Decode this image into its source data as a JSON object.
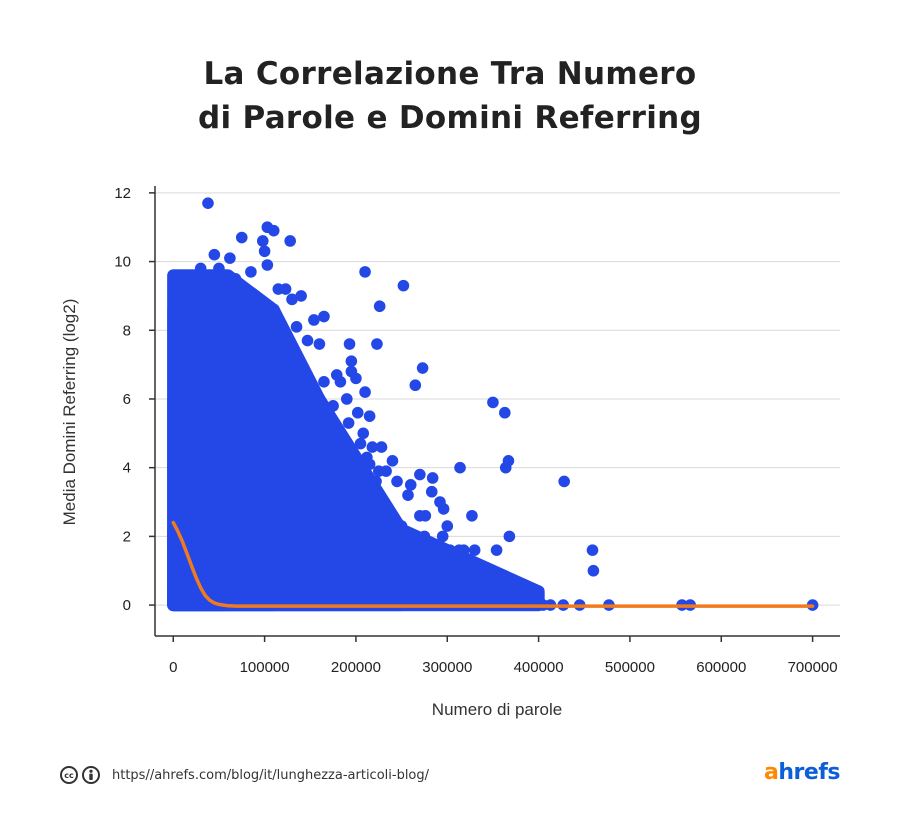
{
  "title_lines": [
    "La Correlazione Tra Numero",
    "di Parole e Domini Referring"
  ],
  "footer": {
    "license_icons": [
      "cc-icon",
      "attribution-icon"
    ],
    "url": "https//ahrefs.com/blog/it/lunghezza-articoli-blog/"
  },
  "brand": {
    "first": "a",
    "rest": "hrefs"
  },
  "colors": {
    "points": "#2448e8",
    "trend": "#f07a1e",
    "axis": "#333333",
    "grid": "#d9d9d9"
  },
  "chart_data": {
    "type": "scatter",
    "xlabel": "Numero di parole",
    "ylabel": "Media Domini Referring (log2)",
    "xlim": [
      -20000,
      730000
    ],
    "ylim": [
      -0.9,
      12.2
    ],
    "xticks": [
      0,
      100000,
      200000,
      300000,
      400000,
      500000,
      600000,
      700000
    ],
    "xtick_labels": [
      "0",
      "100000",
      "200000",
      "300000",
      "400000",
      "500000",
      "600000",
      "700000"
    ],
    "yticks": [
      0,
      2,
      4,
      6,
      8,
      10,
      12
    ],
    "ytick_labels": [
      "0",
      "2",
      "4",
      "6",
      "8",
      "10",
      "12"
    ],
    "grid": "horizontal",
    "dense_regions": [
      {
        "x": [
          0,
          110000
        ],
        "y": [
          0,
          8.6
        ]
      },
      {
        "x": [
          0,
          60000
        ],
        "y": [
          0,
          9.6
        ]
      },
      {
        "x": [
          0,
          160000
        ],
        "y": [
          0,
          6.0
        ]
      },
      {
        "x": [
          0,
          250000
        ],
        "y": [
          0,
          2.2
        ]
      },
      {
        "x": [
          0,
          400000
        ],
        "y": [
          0,
          0.4
        ]
      }
    ],
    "points": [
      [
        38000,
        11.7
      ],
      [
        103000,
        11.0
      ],
      [
        110000,
        10.9
      ],
      [
        128000,
        10.6
      ],
      [
        75000,
        10.7
      ],
      [
        98000,
        10.6
      ],
      [
        45000,
        10.2
      ],
      [
        100000,
        10.3
      ],
      [
        103000,
        9.9
      ],
      [
        30000,
        9.8
      ],
      [
        50000,
        9.8
      ],
      [
        62000,
        10.1
      ],
      [
        85000,
        9.7
      ],
      [
        68000,
        9.5
      ],
      [
        210000,
        9.7
      ],
      [
        252000,
        9.3
      ],
      [
        123000,
        9.2
      ],
      [
        115000,
        9.2
      ],
      [
        140000,
        9.0
      ],
      [
        130000,
        8.9
      ],
      [
        82000,
        8.9
      ],
      [
        226000,
        8.7
      ],
      [
        3000,
        8.6
      ],
      [
        20000,
        8.7
      ],
      [
        154000,
        8.3
      ],
      [
        165000,
        8.4
      ],
      [
        135000,
        8.1
      ],
      [
        147000,
        7.7
      ],
      [
        160000,
        7.6
      ],
      [
        193000,
        7.6
      ],
      [
        223000,
        7.6
      ],
      [
        195000,
        7.1
      ],
      [
        195000,
        6.8
      ],
      [
        179000,
        6.7
      ],
      [
        200000,
        6.6
      ],
      [
        165000,
        6.5
      ],
      [
        183000,
        6.5
      ],
      [
        273000,
        6.9
      ],
      [
        265000,
        6.4
      ],
      [
        350000,
        5.9
      ],
      [
        363000,
        5.6
      ],
      [
        190000,
        6.0
      ],
      [
        210000,
        6.2
      ],
      [
        175000,
        5.8
      ],
      [
        202000,
        5.6
      ],
      [
        192000,
        5.3
      ],
      [
        215000,
        5.5
      ],
      [
        208000,
        5.0
      ],
      [
        186000,
        4.9
      ],
      [
        205000,
        4.7
      ],
      [
        218000,
        4.6
      ],
      [
        228000,
        4.6
      ],
      [
        212000,
        4.3
      ],
      [
        240000,
        4.2
      ],
      [
        233000,
        3.9
      ],
      [
        225000,
        3.9
      ],
      [
        215000,
        4.1
      ],
      [
        222000,
        3.6
      ],
      [
        245000,
        3.6
      ],
      [
        270000,
        3.8
      ],
      [
        260000,
        3.5
      ],
      [
        284000,
        3.7
      ],
      [
        257000,
        3.2
      ],
      [
        283000,
        3.3
      ],
      [
        292000,
        3.0
      ],
      [
        296000,
        2.8
      ],
      [
        314000,
        4.0
      ],
      [
        364000,
        4.0
      ],
      [
        367000,
        4.2
      ],
      [
        428000,
        3.6
      ],
      [
        327000,
        2.6
      ],
      [
        270000,
        2.6
      ],
      [
        276000,
        2.6
      ],
      [
        300000,
        2.3
      ],
      [
        250000,
        2.3
      ],
      [
        233000,
        2.3
      ],
      [
        240000,
        2.0
      ],
      [
        262000,
        2.0
      ],
      [
        275000,
        2.0
      ],
      [
        295000,
        2.0
      ],
      [
        368000,
        2.0
      ],
      [
        248000,
        1.6
      ],
      [
        268000,
        1.6
      ],
      [
        285000,
        1.6
      ],
      [
        303000,
        1.6
      ],
      [
        313000,
        1.6
      ],
      [
        318000,
        1.6
      ],
      [
        330000,
        1.6
      ],
      [
        354000,
        1.6
      ],
      [
        459000,
        1.6
      ],
      [
        245000,
        1.0
      ],
      [
        262000,
        1.0
      ],
      [
        270000,
        1.0
      ],
      [
        280000,
        1.0
      ],
      [
        290000,
        1.0
      ],
      [
        309000,
        1.0
      ],
      [
        313000,
        1.0
      ],
      [
        323000,
        1.0
      ],
      [
        460000,
        1.0
      ],
      [
        165000,
        0.6
      ],
      [
        220000,
        0.6
      ],
      [
        213000,
        0.6
      ],
      [
        380000,
        0.0
      ],
      [
        405000,
        0.0
      ],
      [
        413000,
        0.0
      ],
      [
        427000,
        0.0
      ],
      [
        445000,
        0.0
      ],
      [
        477000,
        0.0
      ],
      [
        557000,
        0.0
      ],
      [
        566000,
        0.0
      ],
      [
        700000,
        0.0
      ]
    ],
    "trend_line": {
      "x": [
        0,
        5000,
        10000,
        15000,
        20000,
        25000,
        30000,
        35000,
        40000,
        45000,
        50000,
        55000,
        60000,
        70000,
        80000,
        100000,
        150000,
        200000,
        300000,
        400000,
        500000,
        600000,
        700000
      ],
      "y": [
        2.4,
        2.15,
        1.85,
        1.5,
        1.15,
        0.8,
        0.5,
        0.28,
        0.14,
        0.06,
        0.02,
        0.0,
        -0.02,
        -0.03,
        -0.03,
        -0.03,
        -0.03,
        -0.03,
        -0.03,
        -0.03,
        -0.03,
        -0.03,
        -0.03
      ]
    }
  }
}
